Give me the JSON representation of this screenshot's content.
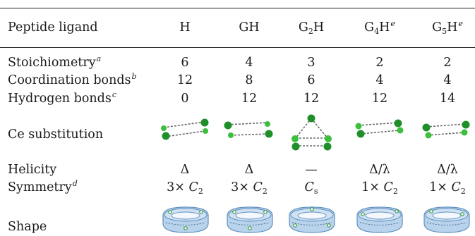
{
  "header": {
    "label": "Peptide ligand",
    "cols": [
      {
        "main": "H",
        "sub": "",
        "tail": "",
        "sup": ""
      },
      {
        "main": "GH",
        "sub": "",
        "tail": "",
        "sup": ""
      },
      {
        "main": "G",
        "sub": "2",
        "tail": "H",
        "sup": ""
      },
      {
        "main": "G",
        "sub": "4",
        "tail": "H",
        "sup": "e"
      },
      {
        "main": "G",
        "sub": "5",
        "tail": "H",
        "sup": "e"
      }
    ]
  },
  "rows": [
    {
      "label": "Stoichiometry",
      "sup": "a",
      "values": [
        "6",
        "4",
        "3",
        "2",
        "2"
      ]
    },
    {
      "label": "Coordination bonds",
      "sup": "b",
      "values": [
        "12",
        "8",
        "6",
        "4",
        "4"
      ]
    },
    {
      "label": "Hydrogen bonds",
      "sup": "c",
      "values": [
        "0",
        "12",
        "12",
        "12",
        "14"
      ]
    }
  ],
  "substitution": {
    "label": "Ce substitution",
    "pictures": [
      "pair",
      "pair",
      "triangle",
      "pair",
      "pair"
    ]
  },
  "helicity": {
    "label": "Helicity",
    "values": [
      "Δ",
      "Δ",
      "—",
      "Δ/λ",
      "Δ/λ"
    ]
  },
  "symmetry": {
    "label": "Symmetry",
    "sup": "d",
    "values": [
      {
        "prefix": "3×",
        "main": "C",
        "sub": "2"
      },
      {
        "prefix": "3×",
        "main": "C",
        "sub": "2"
      },
      {
        "prefix": "",
        "main": "C",
        "sub": "s"
      },
      {
        "prefix": "1×",
        "main": "C",
        "sub": "2"
      },
      {
        "prefix": "1×",
        "main": "C",
        "sub": "2"
      }
    ]
  },
  "shape": {
    "label": "Shape",
    "pictures": [
      "ring",
      "ring",
      "ring",
      "ring",
      "ring"
    ]
  },
  "colors": {
    "atom": "#3cbf3c",
    "atom_dark": "#1f8f2a",
    "dash": "#6b6b6b",
    "ring_fill": "#b9d3ec",
    "ring_edge": "#5e8fbf"
  }
}
